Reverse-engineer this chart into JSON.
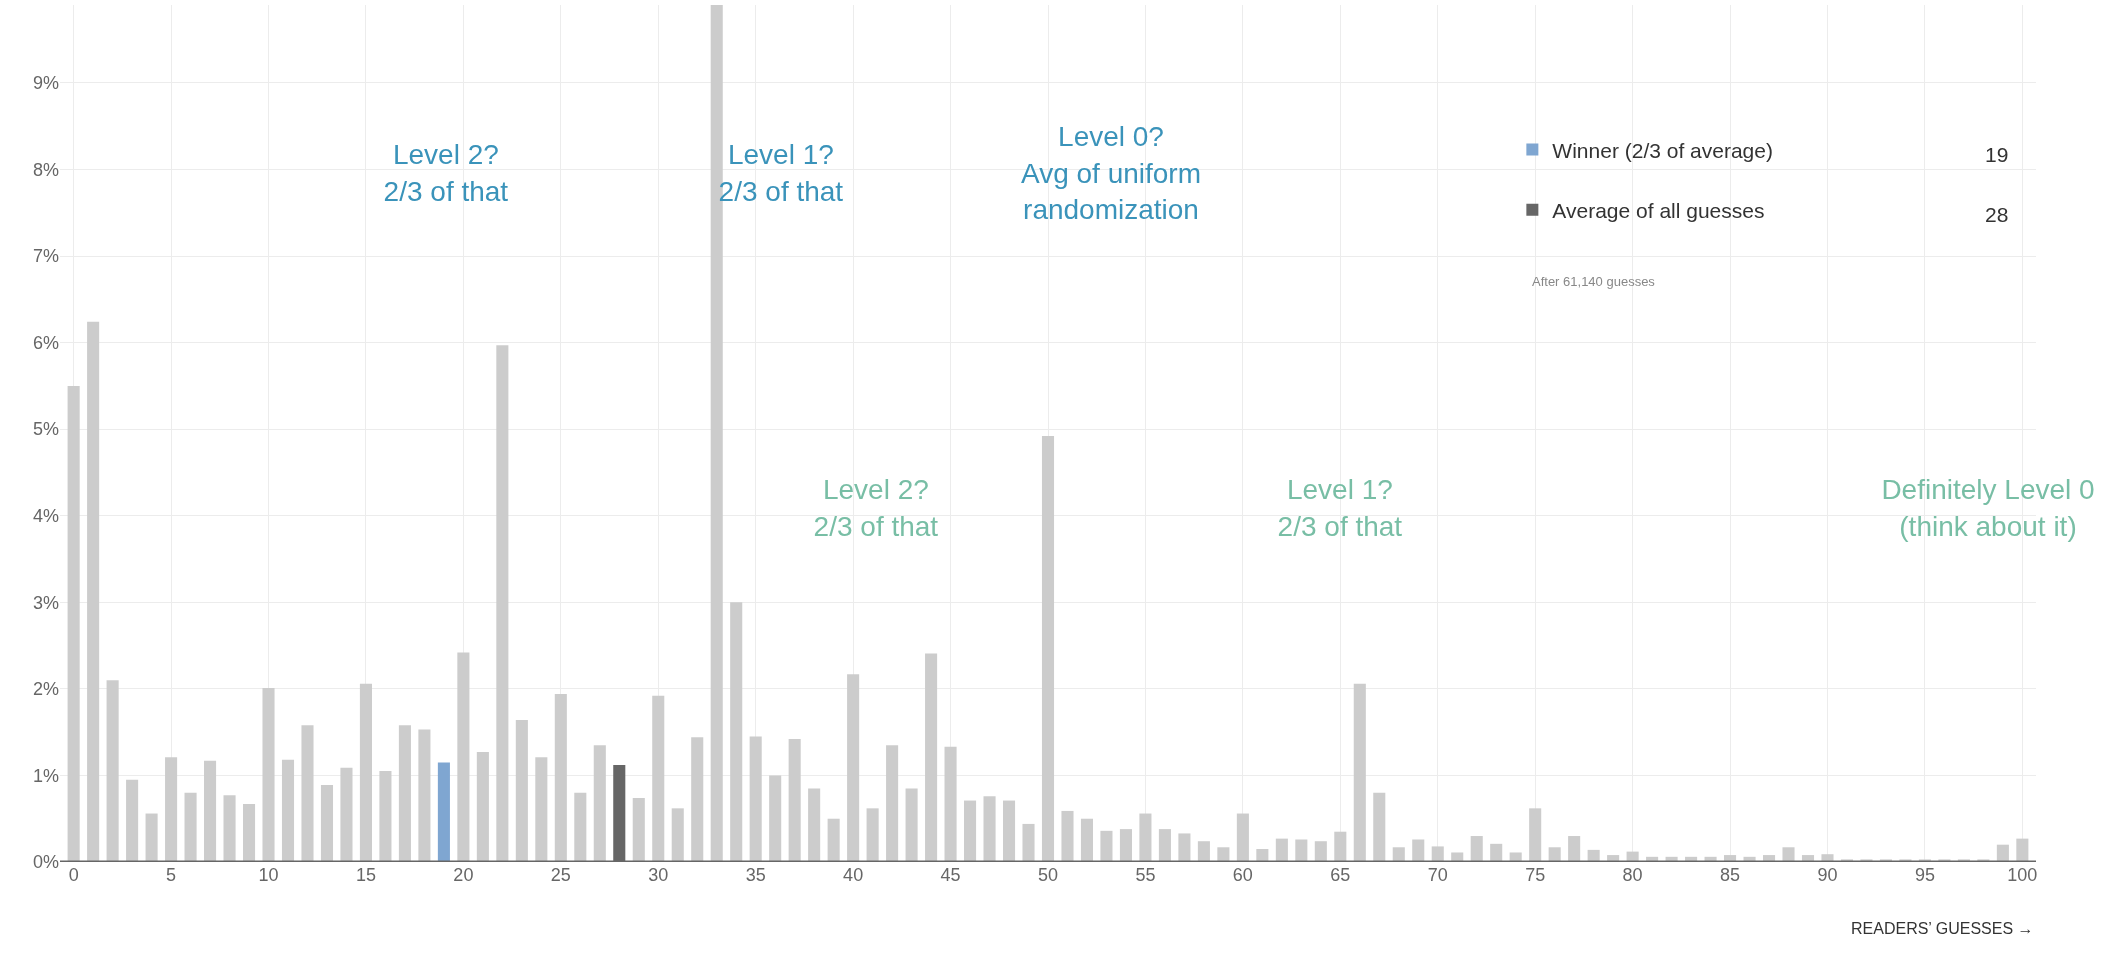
{
  "chart_data": {
    "type": "bar",
    "x": [
      0,
      1,
      2,
      3,
      4,
      5,
      6,
      7,
      8,
      9,
      10,
      11,
      12,
      13,
      14,
      15,
      16,
      17,
      18,
      19,
      20,
      21,
      22,
      23,
      24,
      25,
      26,
      27,
      28,
      29,
      30,
      31,
      32,
      33,
      34,
      35,
      36,
      37,
      38,
      39,
      40,
      41,
      42,
      43,
      44,
      45,
      46,
      47,
      48,
      49,
      50,
      51,
      52,
      53,
      54,
      55,
      56,
      57,
      58,
      59,
      60,
      61,
      62,
      63,
      64,
      65,
      66,
      67,
      68,
      69,
      70,
      71,
      72,
      73,
      74,
      75,
      76,
      77,
      78,
      79,
      80,
      81,
      82,
      83,
      84,
      85,
      86,
      87,
      88,
      89,
      90,
      91,
      92,
      93,
      94,
      95,
      96,
      97,
      98,
      99,
      100
    ],
    "series": [
      {
        "color": "#cccccc",
        "values": [
          5.5,
          6.24,
          2.1,
          0.95,
          0.56,
          1.21,
          0.8,
          1.17,
          0.77,
          0.67,
          2.01,
          1.18,
          1.58,
          0.89,
          1.09,
          2.06,
          1.05,
          1.58,
          1.53,
          null,
          2.42,
          1.27,
          5.97,
          1.64,
          1.21,
          1.94,
          0.8,
          1.35,
          null,
          0.74,
          1.92,
          0.62,
          1.44,
          9.9,
          3.0,
          1.45,
          1.0,
          1.42,
          0.85,
          0.5,
          2.17,
          0.62,
          1.35,
          0.85,
          2.41,
          1.33,
          0.71,
          0.76,
          0.71,
          0.44,
          4.92,
          0.59,
          0.5,
          0.36,
          0.38,
          0.56,
          0.38,
          0.33,
          0.24,
          0.17,
          0.56,
          0.15,
          0.27,
          0.26,
          0.24,
          0.35,
          2.06,
          0.8,
          0.17,
          0.26,
          0.18,
          0.11,
          0.3,
          0.21,
          0.11,
          0.62,
          0.17,
          0.3,
          0.14,
          0.08,
          0.12,
          0.06,
          0.06,
          0.06,
          0.06,
          0.08,
          0.06,
          0.08,
          0.17,
          0.08,
          0.09,
          0.03,
          0.03,
          0.03,
          0.03,
          0.03,
          0.03,
          0.03,
          0.03,
          0.2,
          0.27
        ]
      },
      {
        "name": "Winner (2/3 of average)",
        "color": "#7fa6d1",
        "x": [
          19
        ],
        "values": [
          1.15
        ]
      },
      {
        "name": "Average of all guesses",
        "color": "#666666",
        "x": [
          28
        ],
        "values": [
          1.12
        ]
      }
    ],
    "xlim": [
      -0.7,
      100.7
    ],
    "xticks": [
      0,
      5,
      10,
      15,
      20,
      25,
      30,
      35,
      40,
      45,
      50,
      55,
      60,
      65,
      70,
      75,
      80,
      85,
      90,
      95,
      100
    ],
    "ylim": [
      0,
      9.9
    ],
    "yticks": [
      {
        "value": 0,
        "label": "0%"
      },
      {
        "value": 1,
        "label": "1%"
      },
      {
        "value": 2,
        "label": "2%"
      },
      {
        "value": 3,
        "label": "3%"
      },
      {
        "value": 4,
        "label": "4%"
      },
      {
        "value": 5,
        "label": "5%"
      },
      {
        "value": 6,
        "label": "6%"
      },
      {
        "value": 7,
        "label": "7%"
      },
      {
        "value": 8,
        "label": "8%"
      },
      {
        "value": 9,
        "label": "9%"
      }
    ],
    "xlabel": "READERS’ GUESSES →",
    "grid": true,
    "legend": "top right",
    "annotations": [
      "19",
      "28",
      "After 61,140 guesses",
      "Level 2?\n2/3 of that",
      "Level 1?\n2/3 of that",
      "Level 0?\nAvg of uniform\nrandomization",
      "Level 2?\n2/3 of that",
      "Level 1?\n2/3 of that",
      "Definitely Level 0\n(think about it)"
    ]
  }
}
